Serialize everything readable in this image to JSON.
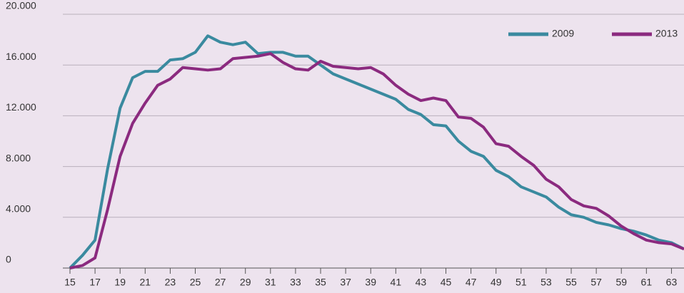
{
  "chart_data": {
    "type": "line",
    "x": [
      15,
      16,
      17,
      18,
      19,
      20,
      21,
      22,
      23,
      24,
      25,
      26,
      27,
      28,
      29,
      30,
      31,
      32,
      33,
      34,
      35,
      36,
      37,
      38,
      39,
      40,
      41,
      42,
      43,
      44,
      45,
      46,
      47,
      48,
      49,
      50,
      51,
      52,
      53,
      54,
      55,
      56,
      57,
      58,
      59,
      60,
      61,
      62,
      63,
      64
    ],
    "series": [
      {
        "name": "2009",
        "color": "#3a8a9f",
        "values": [
          0,
          1000,
          2200,
          7800,
          12600,
          15000,
          15500,
          15500,
          16400,
          16500,
          17000,
          18300,
          17800,
          17600,
          17800,
          16900,
          17000,
          17000,
          16700,
          16700,
          16000,
          15300,
          14900,
          14500,
          14100,
          13700,
          13300,
          12500,
          12100,
          11300,
          11200,
          10000,
          9200,
          8800,
          7700,
          7200,
          6400,
          6000,
          5600,
          4800,
          4200,
          4000,
          3600,
          3400,
          3100,
          2900,
          2600,
          2200,
          2000,
          1500
        ]
      },
      {
        "name": "2013",
        "color": "#8b2a7f",
        "values": [
          0,
          200,
          800,
          4600,
          8800,
          11400,
          13000,
          14400,
          14900,
          15800,
          15700,
          15600,
          15700,
          16500,
          16600,
          16700,
          16900,
          16200,
          15700,
          15600,
          16300,
          15900,
          15800,
          15700,
          15800,
          15300,
          14400,
          13700,
          13200,
          13400,
          13200,
          11900,
          11800,
          11100,
          9800,
          9600,
          8800,
          8100,
          7000,
          6400,
          5400,
          4900,
          4700,
          4100,
          3300,
          2700,
          2200,
          2000,
          1900,
          1500
        ]
      }
    ],
    "xlim": [
      15,
      64
    ],
    "xticks": [
      15,
      17,
      19,
      21,
      23,
      25,
      27,
      29,
      31,
      33,
      35,
      37,
      39,
      41,
      43,
      45,
      47,
      49,
      51,
      53,
      55,
      57,
      59,
      61,
      63
    ],
    "ylim": [
      0,
      20000
    ],
    "yticks": [
      0,
      {
        "value": 4000,
        "label": "4.000"
      },
      {
        "value": 8000,
        "label": "8.000"
      },
      {
        "value": 12000,
        "label": "12.000"
      },
      {
        "value": 16000,
        "label": "16.000"
      },
      {
        "value": 20000,
        "label": "20.000"
      }
    ],
    "grid": true,
    "legend": "top-right"
  }
}
